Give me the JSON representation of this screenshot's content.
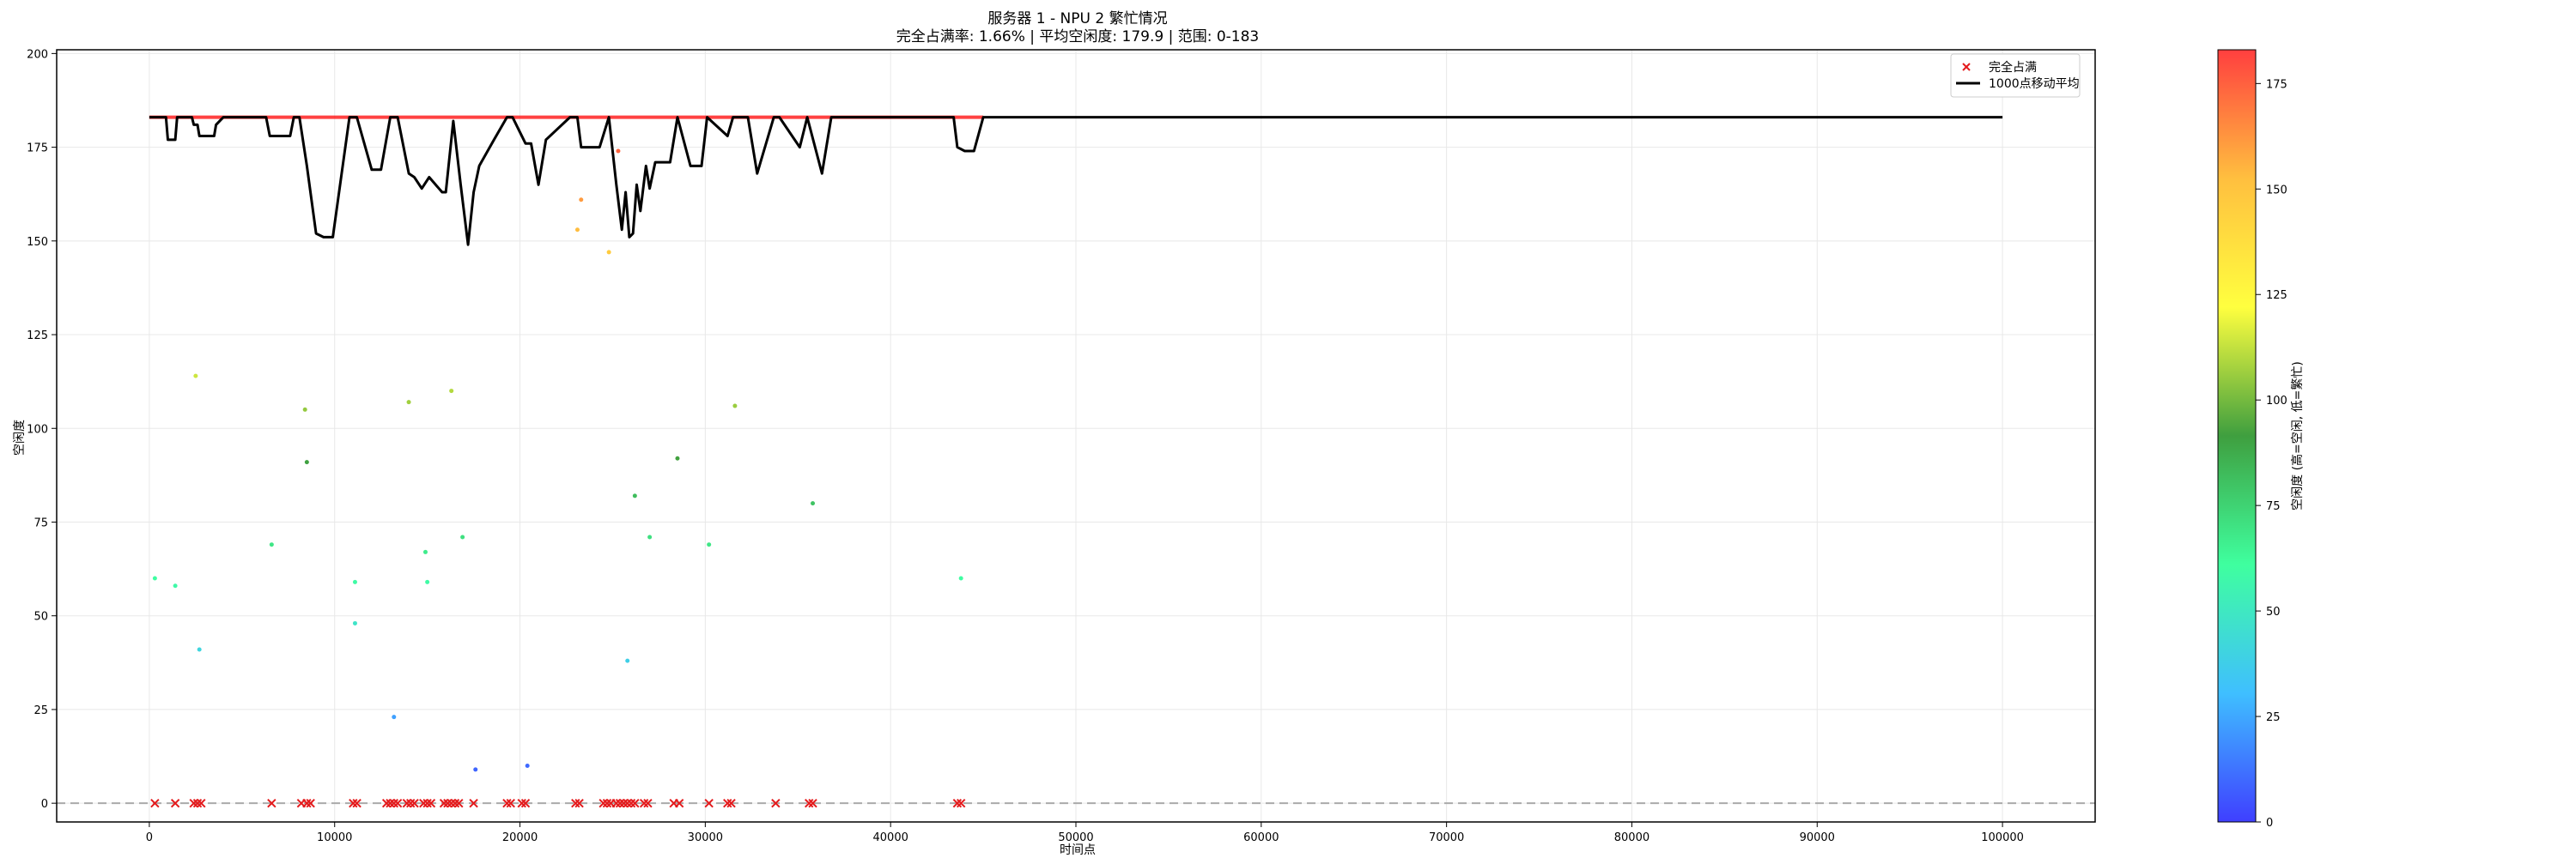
{
  "chart_data": {
    "type": "scatter",
    "title": "服务器 1 - NPU 2 繁忙情况",
    "subtitle": "完全占满率: 1.66% | 平均空闲度: 179.9 | 范围: 0-183",
    "xlabel": "时间点",
    "ylabel": "空闲度",
    "xlim": [
      -5000,
      105000
    ],
    "ylim": [
      -5,
      201
    ],
    "xticks": [
      0,
      10000,
      20000,
      30000,
      40000,
      50000,
      60000,
      70000,
      80000,
      90000,
      100000
    ],
    "yticks": [
      0,
      25,
      50,
      75,
      100,
      125,
      150,
      175,
      200
    ],
    "grid": true,
    "legend_position": "top-right",
    "legend": [
      {
        "label": "完全占满",
        "marker": "x",
        "color": "#e41a1c"
      },
      {
        "label": "1000点移动平均",
        "marker": "line",
        "color": "#000000"
      }
    ],
    "colorbar": {
      "label": "空闲度 (高=空闲, 低=繁忙)",
      "range": [
        0,
        183
      ],
      "ticks": [
        0,
        25,
        50,
        75,
        100,
        125,
        150,
        175
      ],
      "colors": [
        "#3f3fff",
        "#3fbfff",
        "#3fff9f",
        "#3f9f3f",
        "#ffff3f",
        "#ffbf3f",
        "#ff3f3f"
      ]
    },
    "max_line": {
      "y": 183,
      "x_range": [
        0,
        45000
      ],
      "color": "#ff2020"
    },
    "idle_reference": {
      "y": 0,
      "style": "dashed",
      "color": "#aaaaaa"
    },
    "fully_occupied_x": [
      300,
      1400,
      2400,
      2600,
      2800,
      6600,
      8200,
      8500,
      8700,
      11000,
      11200,
      12800,
      13000,
      13200,
      13400,
      13900,
      14100,
      14300,
      14800,
      15000,
      15200,
      15900,
      16100,
      16300,
      16500,
      16700,
      17500,
      19300,
      19500,
      20100,
      20300,
      23000,
      23200,
      24500,
      24700,
      24900,
      25200,
      25400,
      25600,
      25800,
      26000,
      26200,
      26700,
      26900,
      28300,
      28600,
      30200,
      31200,
      31400,
      33800,
      35600,
      35800,
      43600,
      43800
    ],
    "partial_points": [
      {
        "x": 300,
        "y": 60
      },
      {
        "x": 1400,
        "y": 58
      },
      {
        "x": 2500,
        "y": 114
      },
      {
        "x": 2700,
        "y": 41
      },
      {
        "x": 6600,
        "y": 69
      },
      {
        "x": 8400,
        "y": 105
      },
      {
        "x": 8500,
        "y": 91
      },
      {
        "x": 11100,
        "y": 59
      },
      {
        "x": 11100,
        "y": 48
      },
      {
        "x": 13200,
        "y": 23
      },
      {
        "x": 14000,
        "y": 107
      },
      {
        "x": 14900,
        "y": 67
      },
      {
        "x": 15000,
        "y": 59
      },
      {
        "x": 16300,
        "y": 110
      },
      {
        "x": 16900,
        "y": 71
      },
      {
        "x": 17600,
        "y": 9
      },
      {
        "x": 20400,
        "y": 10
      },
      {
        "x": 23100,
        "y": 153
      },
      {
        "x": 23300,
        "y": 161
      },
      {
        "x": 24800,
        "y": 147
      },
      {
        "x": 25300,
        "y": 174
      },
      {
        "x": 25800,
        "y": 38
      },
      {
        "x": 26200,
        "y": 82
      },
      {
        "x": 27000,
        "y": 71
      },
      {
        "x": 28500,
        "y": 92
      },
      {
        "x": 30200,
        "y": 69
      },
      {
        "x": 31600,
        "y": 106
      },
      {
        "x": 35800,
        "y": 80
      },
      {
        "x": 43800,
        "y": 60
      }
    ],
    "moving_average": {
      "x": [
        0,
        900,
        1000,
        1400,
        1500,
        2300,
        2400,
        2600,
        2700,
        3500,
        3600,
        4000,
        6300,
        6500,
        7600,
        7800,
        8100,
        8500,
        9000,
        9400,
        9900,
        10800,
        11200,
        12000,
        12500,
        13000,
        13400,
        14000,
        14300,
        14700,
        15100,
        15800,
        16000,
        16400,
        16800,
        17200,
        17500,
        17800,
        18600,
        19300,
        19600,
        20300,
        20600,
        21000,
        21400,
        22700,
        23100,
        23300,
        24300,
        24800,
        25200,
        25500,
        25700,
        25900,
        26100,
        26300,
        26500,
        26800,
        27000,
        27300,
        28100,
        28500,
        29200,
        29800,
        30100,
        31200,
        31500,
        32300,
        32800,
        33700,
        34000,
        35100,
        35500,
        36300,
        36800,
        43400,
        43600,
        44000,
        44500,
        45000,
        45300,
        100000
      ],
      "y": [
        183,
        183,
        177,
        177,
        183,
        183,
        181,
        181,
        178,
        178,
        181,
        183,
        183,
        178,
        178,
        183,
        183,
        170,
        152,
        151,
        151,
        183,
        183,
        169,
        169,
        183,
        183,
        168,
        167,
        164,
        167,
        163,
        163,
        182,
        165,
        149,
        163,
        170,
        177,
        183,
        183,
        176,
        176,
        165,
        177,
        183,
        183,
        175,
        175,
        183,
        165,
        153,
        163,
        151,
        152,
        165,
        158,
        170,
        164,
        171,
        171,
        183,
        170,
        170,
        183,
        178,
        183,
        183,
        168,
        183,
        183,
        175,
        183,
        168,
        183,
        183,
        175,
        174,
        174,
        183,
        183,
        183
      ]
    }
  }
}
